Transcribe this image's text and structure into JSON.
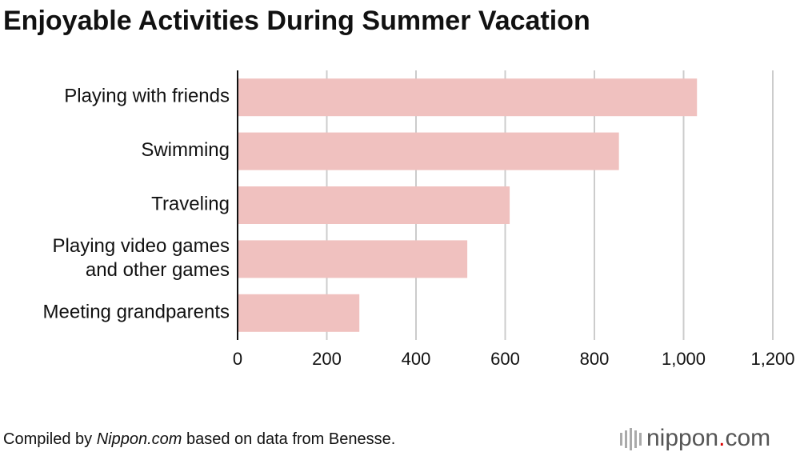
{
  "chart_data": {
    "type": "bar",
    "orientation": "horizontal",
    "title": "Enjoyable Activities During Summer Vacation",
    "categories": [
      "Playing with friends",
      "Swimming",
      "Traveling",
      "Playing video games\nand other games",
      "Meeting grandparents"
    ],
    "values": [
      1030,
      855,
      610,
      515,
      273
    ],
    "color": "#f0c1bf",
    "xlim": [
      0,
      1200
    ],
    "xticks": [
      0,
      200,
      400,
      600,
      800,
      {
        "value": 1000,
        "label": "1,000"
      },
      {
        "value": 1200,
        "label": "1,200"
      }
    ],
    "grid": true,
    "source": [
      "Compiled by ",
      "Nippon.com",
      " based on data from Benesse."
    ],
    "logo": [
      "nippon",
      ".",
      "com"
    ]
  }
}
